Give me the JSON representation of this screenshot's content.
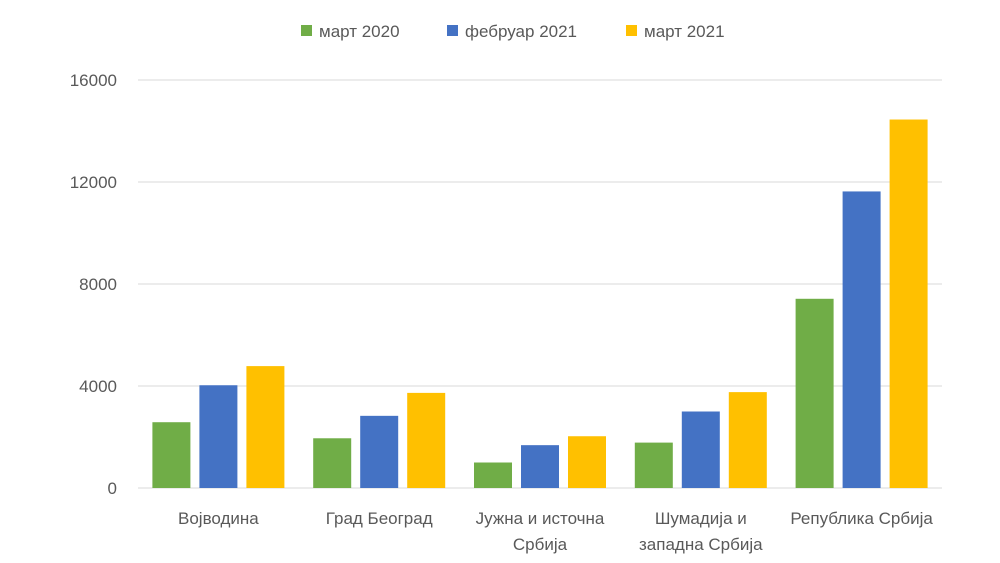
{
  "chart_data": {
    "type": "bar",
    "categories": [
      [
        "Војводина"
      ],
      [
        "Град Београд"
      ],
      [
        "Јужна и источна",
        "Србија"
      ],
      [
        "Шумадија и",
        "западна Србија"
      ],
      [
        "Република Србија"
      ]
    ],
    "series": [
      {
        "name": "март 2020",
        "color": "#70ad47",
        "values": [
          2580,
          1950,
          1000,
          1780,
          7420
        ]
      },
      {
        "name": "фебруар 2021",
        "color": "#4472c4",
        "values": [
          4030,
          2830,
          1680,
          3000,
          11630
        ]
      },
      {
        "name": "март 2021",
        "color": "#ffc000",
        "values": [
          4780,
          3730,
          2030,
          3760,
          14450
        ]
      }
    ],
    "ylim": [
      0,
      16000
    ],
    "yticks": [
      0,
      4000,
      8000,
      12000,
      16000
    ],
    "yticklabels": [
      "0",
      "4000",
      "8000",
      "12000",
      "16000"
    ],
    "grid": true,
    "legend_position": "top"
  }
}
